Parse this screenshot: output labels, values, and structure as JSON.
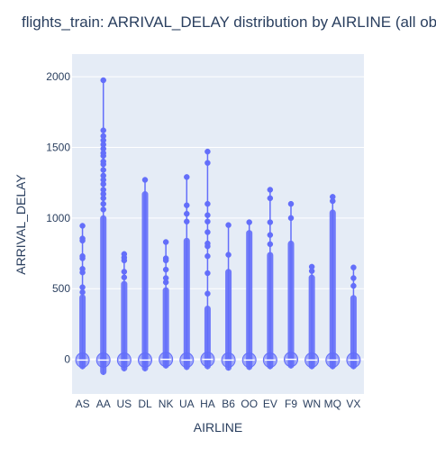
{
  "chart_data": {
    "type": "violin",
    "title": "flights_train: ARRIVAL_DELAY distribution by AIRLINE (all ob",
    "xlabel": "AIRLINE",
    "ylabel": "ARRIVAL_DELAY",
    "ylim": [
      -245,
      2160
    ],
    "yticks": [
      0,
      500,
      1000,
      1500,
      2000
    ],
    "yticklabels": [
      "0",
      "500",
      "1000",
      "1500",
      "2000"
    ],
    "grid": true,
    "legend": "none",
    "color": "#636efa",
    "plot_bg": "#e5ecf6",
    "categories": [
      "AS",
      "AA",
      "US",
      "DL",
      "NK",
      "UA",
      "HA",
      "B6",
      "OO",
      "EV",
      "F9",
      "WN",
      "MQ",
      "VX"
    ],
    "groups": [
      {
        "name": "AS",
        "min": -70,
        "max": 945,
        "dense_max": 460,
        "q1": -10,
        "median": -5,
        "q3": 5,
        "outliers": [
          945,
          855,
          840,
          730,
          715,
          640,
          615,
          510,
          475
        ]
      },
      {
        "name": "AA",
        "min": -110,
        "max": 1975,
        "dense_max": 1020,
        "q1": -15,
        "median": -5,
        "q3": 10,
        "outliers": [
          1975,
          1620,
          1580,
          1550,
          1520,
          1490,
          1460,
          1440,
          1400,
          1380,
          1340,
          1300,
          1270,
          1240,
          1200,
          1170,
          1140,
          1100,
          1060
        ]
      },
      {
        "name": "US",
        "min": -85,
        "max": 745,
        "dense_max": 555,
        "q1": -12,
        "median": -5,
        "q3": 5,
        "outliers": [
          745,
          720,
          700,
          620,
          580
        ]
      },
      {
        "name": "DL",
        "min": -85,
        "max": 1270,
        "dense_max": 1190,
        "q1": -12,
        "median": -5,
        "q3": 5,
        "outliers": [
          1270
        ]
      },
      {
        "name": "NK",
        "min": -65,
        "max": 830,
        "dense_max": 510,
        "q1": -8,
        "median": 0,
        "q3": 15,
        "outliers": [
          830,
          715,
          700,
          635,
          575,
          545
        ]
      },
      {
        "name": "UA",
        "min": -75,
        "max": 1290,
        "dense_max": 860,
        "q1": -12,
        "median": -5,
        "q3": 10,
        "outliers": [
          1290,
          1090,
          1030,
          975
        ]
      },
      {
        "name": "HA",
        "min": -70,
        "max": 1470,
        "dense_max": 380,
        "q1": -8,
        "median": 0,
        "q3": 8,
        "outliers": [
          1470,
          1390,
          1100,
          1020,
          975,
          900,
          820,
          800,
          730,
          610,
          465
        ]
      },
      {
        "name": "B6",
        "min": -80,
        "max": 950,
        "dense_max": 640,
        "q1": -12,
        "median": -5,
        "q3": 8,
        "outliers": [
          950,
          740
        ]
      },
      {
        "name": "OO",
        "min": -75,
        "max": 970,
        "dense_max": 915,
        "q1": -12,
        "median": -5,
        "q3": 8,
        "outliers": [
          970
        ]
      },
      {
        "name": "EV",
        "min": -70,
        "max": 1200,
        "dense_max": 760,
        "q1": -12,
        "median": -5,
        "q3": 8,
        "outliers": [
          1200,
          1140,
          970,
          880,
          815
        ]
      },
      {
        "name": "F9",
        "min": -65,
        "max": 1100,
        "dense_max": 840,
        "q1": -8,
        "median": 0,
        "q3": 15,
        "outliers": [
          1100,
          1000
        ]
      },
      {
        "name": "WN",
        "min": -70,
        "max": 655,
        "dense_max": 600,
        "q1": -12,
        "median": -5,
        "q3": 5,
        "outliers": [
          655,
          625
        ]
      },
      {
        "name": "MQ",
        "min": -70,
        "max": 1150,
        "dense_max": 1060,
        "q1": -12,
        "median": -5,
        "q3": 8,
        "outliers": [
          1150,
          1120
        ]
      },
      {
        "name": "VX",
        "min": -70,
        "max": 650,
        "dense_max": 455,
        "q1": -12,
        "median": -5,
        "q3": 5,
        "outliers": [
          650,
          575,
          520
        ]
      }
    ]
  }
}
